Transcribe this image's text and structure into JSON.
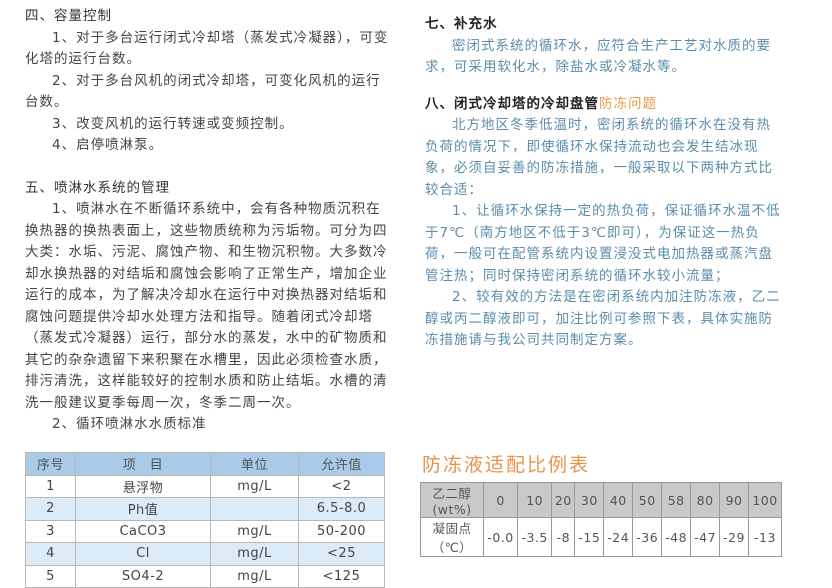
{
  "left": {
    "section4_title": "四、容量控制",
    "section4_items": [
      "1、对于多台运行闭式冷却塔（蒸发式冷凝器），可变化塔的运行台数。",
      "2、对于多台风机的闭式冷却塔，可变化风机的运行台数。",
      "3、改变风机的运行转速或变频控制。",
      "4、启停喷淋泵。"
    ],
    "section5_title": "五、喷淋水系统的管理",
    "section5_para": "1、喷淋水在不断循环系统中，会有各种物质沉积在换热器的换热表面上，这些物质统称为污垢物。可分为四大类：水垢、污泥、腐蚀产物、和生物沉积物。大多数冷却水换热器的对结垢和腐蚀会影响了正常生产，增加企业运行的成本，为了解决冷却水在运行中对换热器对结垢和腐蚀问题提供冷却水处理方法和指导。随着闭式冷却塔（蒸发式冷凝器）运行，部分水的蒸发，水中的矿物质和其它的杂杂遗留下来积聚在水槽里，因此必须检查水质，排污清洗，这样能较好的控制水质和防止结垢。水槽的清洗一般建议夏季每周一次，冬季二周一次。",
    "table_caption": "2、循环喷淋水水质标准",
    "table": {
      "headers": [
        "序号",
        "项　目",
        "单位",
        "允许值"
      ],
      "rows": [
        [
          "1",
          "悬浮物",
          "mg/L",
          "<2"
        ],
        [
          "2",
          "Ph值",
          "",
          "6.5-8.0"
        ],
        [
          "3",
          "CaCO3",
          "mg/L",
          "50-200"
        ],
        [
          "4",
          "Cl",
          "mg/L",
          "<25"
        ],
        [
          "5",
          "SO4-2",
          "mg/L",
          "<125"
        ]
      ]
    }
  },
  "right": {
    "section7_title": "七、补充水",
    "section7_para": "密闭式系统的循环水，应符合生产工艺对水质的要求，可采用软化水，除盐水或冷凝水等。",
    "section8_title": "八、闭式冷却塔的冷却盘管",
    "section8_title_highlight": "防冻问题",
    "section8_para": "北方地区冬季低温时，密闭系统的循环水在没有热负荷的情况下，即使循环水保持流动也会发生结冰现象，必须自妥善的防冻措施，一般采取以下两种方式比较合适：",
    "section8_item1": "1、让循环水保持一定的热负荷，保证循环水温不低于7℃（南方地区不低于3℃即可），为保证这一热负荷，一般可在配管系统内设置浸没式电加热器或蒸汽盘管注热；同时保持密闭系统的循环水较小流量；",
    "section8_item2": "2、较有效的方法是在密闭系统内加注防冻液，乙二醇或丙二醇液即可，加注比例可参照下表，具体实施防冻措施请与我公司共同制定方案。",
    "antifreeze_title": "防冻液适配比例表",
    "antifreeze_table": {
      "row1_label": "乙二醇(wt%)",
      "row1": [
        "0",
        "10",
        "20",
        "30",
        "40",
        "50",
        "58",
        "80",
        "90",
        "100"
      ],
      "row2_label": "凝固点（℃）",
      "row2": [
        "-0.0",
        "-3.5",
        "-8",
        "-15",
        "-24",
        "-36",
        "-48",
        "-47",
        "-29",
        "-13"
      ]
    }
  },
  "colors": {
    "left_text": "#444444",
    "right_text": "#5b8cab",
    "highlight": "#e89a48",
    "table_header": "#a9cbe8",
    "table_alt_row": "#dcebf8",
    "antifreeze_header": "#c9c9c9"
  }
}
